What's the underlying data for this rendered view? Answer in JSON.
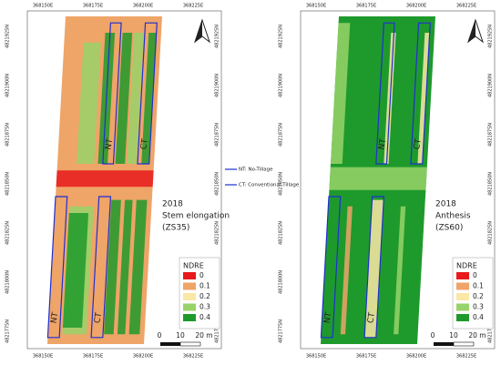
{
  "panels": [
    {
      "year": "2018",
      "stage": "Stem elongation",
      "code": "(ZS35)",
      "plot_labels": [
        "NT",
        "CT",
        "NT",
        "CT"
      ]
    },
    {
      "year": "2018",
      "stage": "Anthesis",
      "code": "(ZS60)",
      "plot_labels": [
        "NT",
        "CT",
        "NT",
        "CT"
      ]
    }
  ],
  "x_labels": [
    "368150E",
    "368175E",
    "368200E",
    "368225E"
  ],
  "y_labels": [
    "4821925N",
    "4821900N",
    "4821875N",
    "4821850N",
    "4821825N",
    "4821800N",
    "4821775N"
  ],
  "treatment_legend": [
    "NT: No-Tillage",
    "CT: Conventional Tillage"
  ],
  "ndre_legend": {
    "title": "NDRE",
    "items": [
      {
        "label": "0",
        "color": "#e8191c"
      },
      {
        "label": "0.1",
        "color": "#efa468"
      },
      {
        "label": "0.2",
        "color": "#fbe7a6"
      },
      {
        "label": "0.3",
        "color": "#98d36a"
      },
      {
        "label": "0.4",
        "color": "#1e9a2c"
      }
    ]
  },
  "scale": [
    "0",
    "10",
    "20 m"
  ]
}
